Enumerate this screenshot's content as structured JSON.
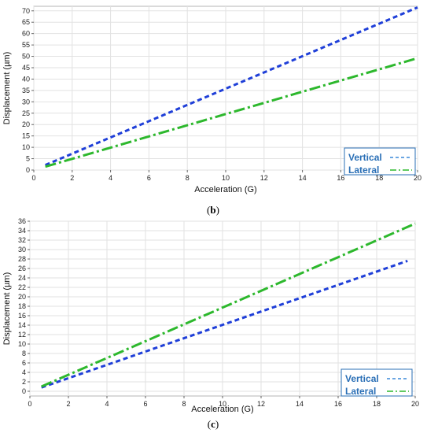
{
  "chart_data": [
    {
      "type": "line",
      "panel_label": "b",
      "xlabel": "Acceleration (G)",
      "ylabel": "Displacement (µm)",
      "xlim": [
        0,
        20
      ],
      "ylim": [
        0,
        72
      ],
      "xticks": [
        0,
        2,
        4,
        6,
        8,
        10,
        12,
        14,
        16,
        18,
        20
      ],
      "yticks": [
        0,
        5,
        10,
        15,
        20,
        25,
        30,
        35,
        40,
        45,
        50,
        55,
        60,
        65,
        70
      ],
      "grid": true,
      "legend_position": "bottom-right",
      "series": [
        {
          "name": "Vertical",
          "color": "#1f3fd8",
          "style": "dashed",
          "x": [
            0.6,
            20
          ],
          "y": [
            2.2,
            71.5
          ]
        },
        {
          "name": "Lateral",
          "color": "#2db82d",
          "style": "dashdot",
          "x": [
            0.6,
            20
          ],
          "y": [
            1.5,
            49.2
          ]
        }
      ]
    },
    {
      "type": "line",
      "panel_label": "c",
      "xlabel": "Acceleration (G)",
      "ylabel": "Displacement (µm)",
      "xlim": [
        0,
        20
      ],
      "ylim": [
        -1,
        36
      ],
      "xticks": [
        0,
        2,
        4,
        6,
        8,
        10,
        12,
        14,
        16,
        18,
        20
      ],
      "yticks": [
        0,
        2,
        4,
        6,
        8,
        10,
        12,
        14,
        16,
        18,
        20,
        22,
        24,
        26,
        28,
        30,
        32,
        34,
        36
      ],
      "grid": true,
      "legend_position": "bottom-right",
      "series": [
        {
          "name": "Vertical",
          "color": "#1f3fd8",
          "style": "dashed",
          "x": [
            0.6,
            19.6
          ],
          "y": [
            0.8,
            27.6
          ]
        },
        {
          "name": "Lateral",
          "color": "#2db82d",
          "style": "dashdot",
          "x": [
            0.6,
            20
          ],
          "y": [
            1.0,
            35.5
          ]
        }
      ]
    }
  ]
}
